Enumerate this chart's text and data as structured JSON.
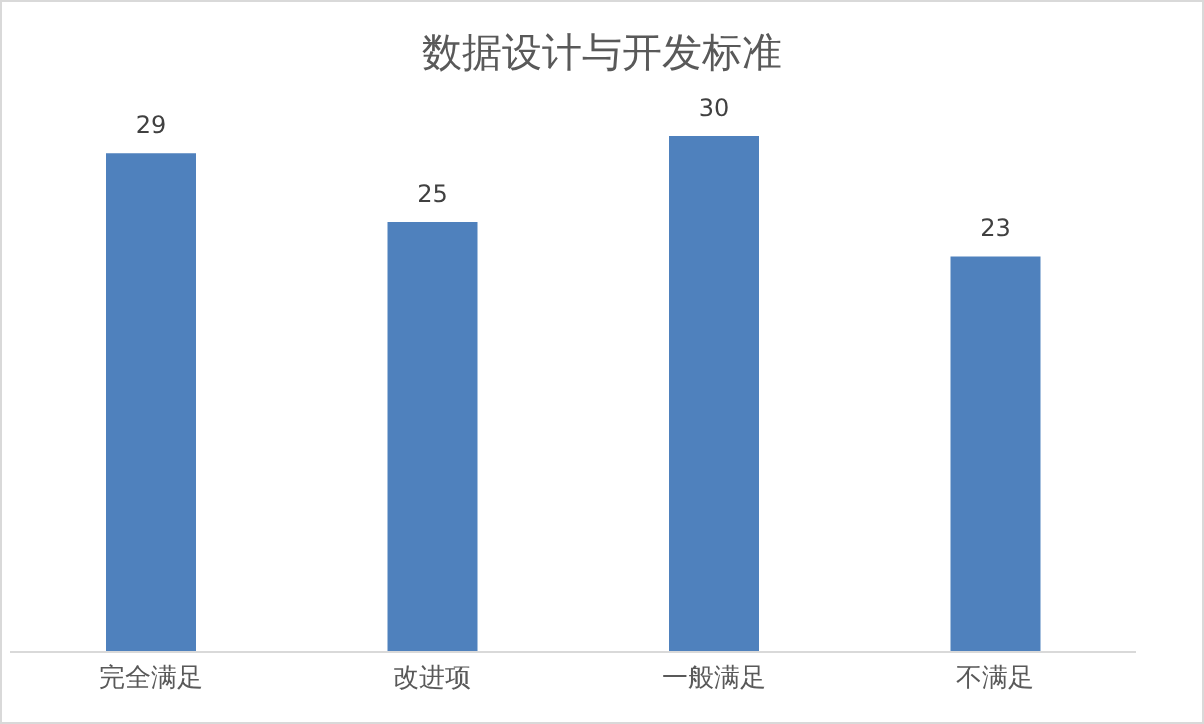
{
  "chart_data": {
    "type": "bar",
    "title": "数据设计与开发标准",
    "categories": [
      "完全满足",
      "改进项",
      "一般满足",
      "不满足"
    ],
    "values": [
      29,
      25,
      30,
      23
    ],
    "color": "#4f81bd",
    "data_labels": true
  }
}
